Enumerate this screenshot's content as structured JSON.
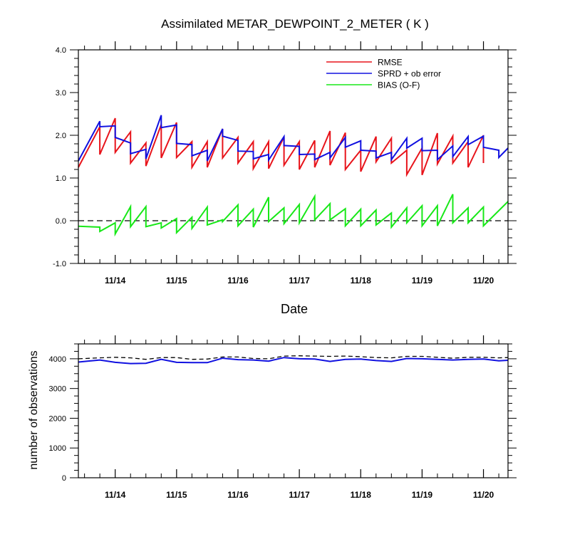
{
  "title": "Assimilated METAR_DEWPOINT_2_METER ( K )",
  "colors": {
    "rmse": "#e8141b",
    "spread": "#1010e0",
    "bias": "#18e818",
    "obs_possible": "#000000",
    "obs_used": "#1010e0",
    "axis": "#000000"
  },
  "chart_data": [
    {
      "type": "line",
      "title": "Assimilated METAR_DEWPOINT_2_METER ( K )",
      "xlabel": "Date",
      "ylabel": "",
      "ylim": [
        -1.0,
        4.0
      ],
      "y_ticks": [
        "4.0",
        "3.0",
        "2.0",
        "1.0",
        "0.0",
        "-1.0"
      ],
      "x_ticks": [
        "11/14",
        "11/15",
        "11/16",
        "11/17",
        "11/18",
        "11/19",
        "11/20"
      ],
      "legend_position": "top-right",
      "zero_line": "dashed",
      "series": [
        {
          "name": "RMSE",
          "points": [
            [
              13.4,
              1.25
            ],
            [
              13.75,
              2.2
            ],
            [
              13.75,
              1.55
            ],
            [
              14.0,
              2.4
            ],
            [
              14.0,
              1.6
            ],
            [
              14.25,
              2.08
            ],
            [
              14.25,
              1.35
            ],
            [
              14.5,
              1.82
            ],
            [
              14.5,
              1.28
            ],
            [
              14.75,
              2.25
            ],
            [
              14.75,
              1.47
            ],
            [
              15.0,
              2.3
            ],
            [
              15.0,
              1.48
            ],
            [
              15.25,
              1.85
            ],
            [
              15.25,
              1.25
            ],
            [
              15.5,
              1.85
            ],
            [
              15.5,
              1.25
            ],
            [
              15.75,
              2.15
            ],
            [
              15.75,
              1.47
            ],
            [
              16.0,
              1.95
            ],
            [
              16.0,
              1.35
            ],
            [
              16.25,
              1.85
            ],
            [
              16.25,
              1.22
            ],
            [
              16.5,
              1.85
            ],
            [
              16.5,
              1.22
            ],
            [
              16.75,
              1.96
            ],
            [
              16.75,
              1.3
            ],
            [
              17.0,
              1.85
            ],
            [
              17.0,
              1.2
            ],
            [
              17.25,
              1.88
            ],
            [
              17.25,
              1.25
            ],
            [
              17.5,
              2.1
            ],
            [
              17.5,
              1.3
            ],
            [
              17.75,
              2.06
            ],
            [
              17.75,
              1.2
            ],
            [
              18.0,
              1.65
            ],
            [
              18.0,
              1.15
            ],
            [
              18.25,
              1.97
            ],
            [
              18.25,
              1.38
            ],
            [
              18.5,
              1.93
            ],
            [
              18.5,
              1.35
            ],
            [
              18.75,
              1.65
            ],
            [
              18.75,
              1.08
            ],
            [
              19.0,
              1.7
            ],
            [
              19.0,
              1.07
            ],
            [
              19.25,
              2.05
            ],
            [
              19.25,
              1.33
            ],
            [
              19.5,
              1.98
            ],
            [
              19.5,
              1.35
            ],
            [
              19.75,
              1.85
            ],
            [
              19.75,
              1.25
            ],
            [
              20.0,
              2.0
            ],
            [
              20.0,
              1.35
            ]
          ]
        },
        {
          "name": "SPRD + ob error",
          "points": [
            [
              13.4,
              1.4
            ],
            [
              13.75,
              2.33
            ],
            [
              13.75,
              2.2
            ],
            [
              14.0,
              2.22
            ],
            [
              14.0,
              1.95
            ],
            [
              14.25,
              1.82
            ],
            [
              14.25,
              1.57
            ],
            [
              14.5,
              1.67
            ],
            [
              14.5,
              1.45
            ],
            [
              14.75,
              2.47
            ],
            [
              14.75,
              2.18
            ],
            [
              15.0,
              2.24
            ],
            [
              15.0,
              1.81
            ],
            [
              15.25,
              1.78
            ],
            [
              15.25,
              1.52
            ],
            [
              15.5,
              1.65
            ],
            [
              15.5,
              1.4
            ],
            [
              15.75,
              2.15
            ],
            [
              15.75,
              1.98
            ],
            [
              16.0,
              1.88
            ],
            [
              16.0,
              1.63
            ],
            [
              16.25,
              1.62
            ],
            [
              16.25,
              1.45
            ],
            [
              16.5,
              1.55
            ],
            [
              16.5,
              1.42
            ],
            [
              16.75,
              1.97
            ],
            [
              16.75,
              1.76
            ],
            [
              17.0,
              1.74
            ],
            [
              17.0,
              1.55
            ],
            [
              17.25,
              1.56
            ],
            [
              17.25,
              1.43
            ],
            [
              17.5,
              1.6
            ],
            [
              17.5,
              1.47
            ],
            [
              17.75,
              1.95
            ],
            [
              17.75,
              1.72
            ],
            [
              18.0,
              1.87
            ],
            [
              18.0,
              1.65
            ],
            [
              18.25,
              1.63
            ],
            [
              18.25,
              1.47
            ],
            [
              18.5,
              1.6
            ],
            [
              18.5,
              1.43
            ],
            [
              18.75,
              1.93
            ],
            [
              18.75,
              1.7
            ],
            [
              19.0,
              1.93
            ],
            [
              19.0,
              1.64
            ],
            [
              19.25,
              1.65
            ],
            [
              19.25,
              1.43
            ],
            [
              19.5,
              1.75
            ],
            [
              19.5,
              1.5
            ],
            [
              19.75,
              1.97
            ],
            [
              19.75,
              1.78
            ],
            [
              20.0,
              1.98
            ],
            [
              20.0,
              1.72
            ],
            [
              20.25,
              1.65
            ],
            [
              20.25,
              1.48
            ],
            [
              20.4,
              1.7
            ]
          ]
        },
        {
          "name": "BIAS (O-F)",
          "points": [
            [
              13.4,
              -0.13
            ],
            [
              13.75,
              -0.15
            ],
            [
              13.75,
              -0.25
            ],
            [
              14.0,
              -0.05
            ],
            [
              14.0,
              -0.31
            ],
            [
              14.25,
              0.33
            ],
            [
              14.25,
              -0.14
            ],
            [
              14.5,
              0.33
            ],
            [
              14.5,
              -0.14
            ],
            [
              14.75,
              -0.05
            ],
            [
              14.75,
              -0.17
            ],
            [
              15.0,
              0.05
            ],
            [
              15.0,
              -0.28
            ],
            [
              15.25,
              0.08
            ],
            [
              15.25,
              -0.18
            ],
            [
              15.5,
              0.32
            ],
            [
              15.5,
              -0.1
            ],
            [
              15.75,
              0.02
            ],
            [
              15.75,
              -0.02
            ],
            [
              16.0,
              0.37
            ],
            [
              16.0,
              -0.12
            ],
            [
              16.25,
              0.27
            ],
            [
              16.25,
              -0.15
            ],
            [
              16.5,
              0.55
            ],
            [
              16.5,
              -0.02
            ],
            [
              16.75,
              0.3
            ],
            [
              16.75,
              -0.07
            ],
            [
              17.0,
              0.38
            ],
            [
              17.0,
              -0.05
            ],
            [
              17.25,
              0.57
            ],
            [
              17.25,
              0.02
            ],
            [
              17.5,
              0.4
            ],
            [
              17.5,
              0.02
            ],
            [
              17.75,
              0.28
            ],
            [
              17.75,
              -0.12
            ],
            [
              18.0,
              0.27
            ],
            [
              18.0,
              -0.12
            ],
            [
              18.25,
              0.25
            ],
            [
              18.25,
              -0.1
            ],
            [
              18.5,
              0.18
            ],
            [
              18.5,
              -0.15
            ],
            [
              18.75,
              0.3
            ],
            [
              18.75,
              -0.05
            ],
            [
              19.0,
              0.35
            ],
            [
              19.0,
              -0.12
            ],
            [
              19.25,
              0.35
            ],
            [
              19.25,
              -0.12
            ],
            [
              19.5,
              0.62
            ],
            [
              19.5,
              -0.05
            ],
            [
              19.75,
              0.3
            ],
            [
              19.75,
              -0.05
            ],
            [
              20.0,
              0.32
            ],
            [
              20.0,
              -0.12
            ],
            [
              20.4,
              0.45
            ]
          ]
        }
      ]
    },
    {
      "type": "line",
      "title": "",
      "xlabel": "",
      "ylabel": "number of observations",
      "ylim": [
        0,
        4500
      ],
      "y_ticks": [
        "4000",
        "3000",
        "2000",
        "1000",
        "0"
      ],
      "x_ticks": [
        "11/14",
        "11/15",
        "11/16",
        "11/17",
        "11/18",
        "11/19",
        "11/20"
      ],
      "series": [
        {
          "line_style": "dashed",
          "color_key": "obs_possible",
          "points": [
            [
              13.4,
              4000
            ],
            [
              13.75,
              4030
            ],
            [
              14.0,
              4050
            ],
            [
              14.25,
              4030
            ],
            [
              14.5,
              3980
            ],
            [
              14.75,
              4040
            ],
            [
              15.0,
              4040
            ],
            [
              15.25,
              3980
            ],
            [
              15.5,
              3990
            ],
            [
              15.75,
              4060
            ],
            [
              16.0,
              4060
            ],
            [
              16.25,
              4010
            ],
            [
              16.5,
              4000
            ],
            [
              16.75,
              4090
            ],
            [
              17.0,
              4100
            ],
            [
              17.25,
              4090
            ],
            [
              17.5,
              4080
            ],
            [
              17.75,
              4090
            ],
            [
              18.0,
              4070
            ],
            [
              18.25,
              4040
            ],
            [
              18.5,
              4030
            ],
            [
              18.75,
              4080
            ],
            [
              19.0,
              4080
            ],
            [
              19.25,
              4050
            ],
            [
              19.5,
              4020
            ],
            [
              19.75,
              4050
            ],
            [
              20.0,
              4050
            ],
            [
              20.25,
              4030
            ],
            [
              20.4,
              4040
            ]
          ]
        },
        {
          "line_style": "solid",
          "color_key": "obs_used",
          "points": [
            [
              13.4,
              3890
            ],
            [
              13.75,
              3960
            ],
            [
              14.0,
              3880
            ],
            [
              14.25,
              3840
            ],
            [
              14.5,
              3850
            ],
            [
              14.75,
              3980
            ],
            [
              15.0,
              3880
            ],
            [
              15.25,
              3870
            ],
            [
              15.5,
              3870
            ],
            [
              15.75,
              4020
            ],
            [
              16.0,
              3970
            ],
            [
              16.25,
              3960
            ],
            [
              16.5,
              3920
            ],
            [
              16.75,
              4040
            ],
            [
              17.0,
              4000
            ],
            [
              17.25,
              3990
            ],
            [
              17.5,
              3910
            ],
            [
              17.75,
              3980
            ],
            [
              18.0,
              3990
            ],
            [
              18.25,
              3940
            ],
            [
              18.5,
              3910
            ],
            [
              18.75,
              4010
            ],
            [
              19.0,
              4000
            ],
            [
              19.25,
              3980
            ],
            [
              19.5,
              3960
            ],
            [
              19.75,
              3980
            ],
            [
              20.0,
              3990
            ],
            [
              20.25,
              3930
            ],
            [
              20.4,
              3950
            ]
          ]
        }
      ]
    }
  ]
}
